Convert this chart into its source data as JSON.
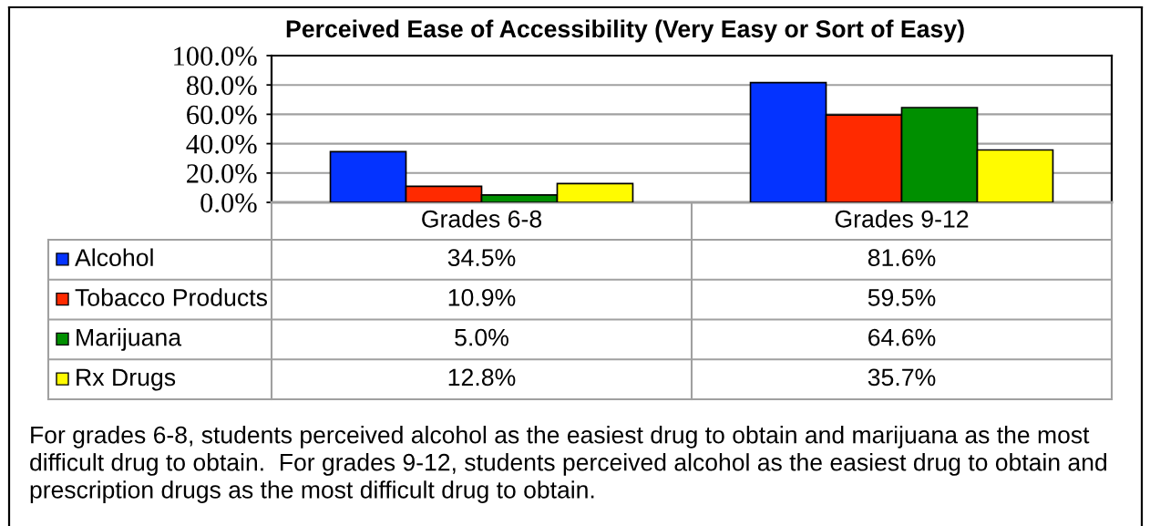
{
  "chart_data": {
    "type": "bar",
    "title": "Perceived Ease of Accessibility (Very Easy or Sort of Easy)",
    "categories": [
      "Grades 6-8",
      "Grades 9-12"
    ],
    "series": [
      {
        "name": "Alcohol",
        "color": "#0433ff",
        "values": [
          34.5,
          81.6
        ],
        "value_labels": [
          "34.5%",
          "81.6%"
        ]
      },
      {
        "name": "Tobacco Products",
        "color": "#ff2a00",
        "values": [
          10.9,
          59.5
        ],
        "value_labels": [
          "10.9%",
          "59.5%"
        ]
      },
      {
        "name": "Marijuana",
        "color": "#008f00",
        "values": [
          5.0,
          64.6
        ],
        "value_labels": [
          "5.0%",
          "64.6%"
        ]
      },
      {
        "name": "Rx Drugs",
        "color": "#fffb00",
        "values": [
          12.8,
          35.7
        ],
        "value_labels": [
          "12.8%",
          "35.7%"
        ]
      }
    ],
    "ylim": [
      0,
      100
    ],
    "yticks": [
      {
        "value": 0,
        "label": "0.0%"
      },
      {
        "value": 20,
        "label": "20.0%"
      },
      {
        "value": 40,
        "label": "40.0%"
      },
      {
        "value": 60,
        "label": "60.0%"
      },
      {
        "value": 80,
        "label": "80.0%"
      },
      {
        "value": 100,
        "label": "100.0%"
      }
    ],
    "grid": "y",
    "legend": "bottom left",
    "annotations": [
      "For grades 6-8, students perceived alcohol as the easiest drug to obtain and marijuana as the most difficult drug to obtain.  For grades 9-12, students perceived alcohol as the easiest drug to obtain and prescription drugs as the most difficult drug to obtain."
    ]
  }
}
